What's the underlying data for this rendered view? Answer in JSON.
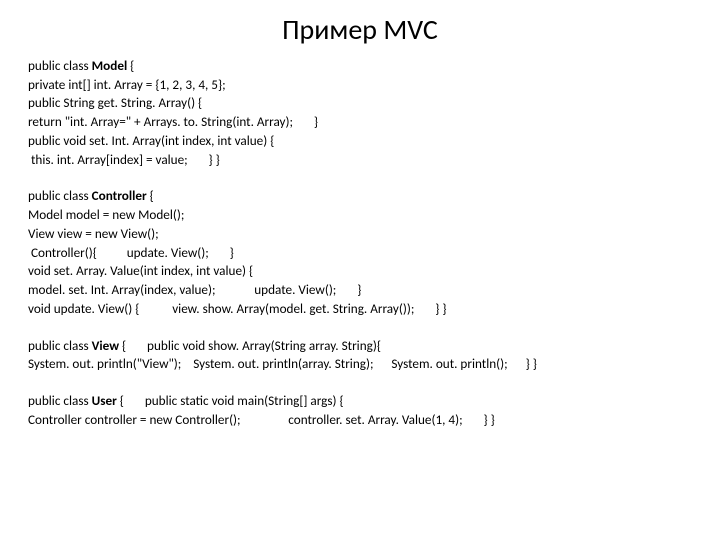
{
  "title": "Пример MVC",
  "model_block": {
    "l1_pre": "public class ",
    "l1_bold": "Model",
    "l1_post": " {",
    "l2": "private int[] int. Array = {1, 2, 3, 4, 5};",
    "l3": "public String get. String. Array() {",
    "l4": "return \"int. Array=\" + Arrays. to. String(int. Array);       }",
    "l5": "public void set. Int. Array(int index, int value) {",
    "l6": " this. int. Array[index] = value;       } }"
  },
  "controller_block": {
    "l1_pre": "public class ",
    "l1_bold": "Controller",
    "l1_post": " {",
    "l2": "Model model = new Model();",
    "l3": "View view = new View();",
    "l4": " Controller(){          update. View();       }",
    "l5": "void set. Array. Value(int index, int value) {",
    "l6": "model. set. Int. Array(index, value);             update. View();       }",
    "l7": "void update. View() {           view. show. Array(model. get. String. Array());       } }"
  },
  "view_block": {
    "l1_pre": "public class ",
    "l1_bold": "View",
    "l1_post": " {       public void show. Array(String array. String){",
    "l2": "System. out. println(\"View\");    System. out. println(array. String);      System. out. println();      } }"
  },
  "user_block": {
    "l1_pre": "public class ",
    "l1_bold": "User",
    "l1_post": " {       public static void main(String[] args) {",
    "l2": "Controller controller = new Controller();                controller. set. Array. Value(1, 4);       } }"
  },
  "colors": {
    "background": "#ffffff",
    "text": "#000000"
  },
  "typography": {
    "title_fontsize": 28,
    "body_fontsize": 13.2,
    "line_height": 1.42,
    "font_family": "Calibri, Arial, sans-serif"
  }
}
